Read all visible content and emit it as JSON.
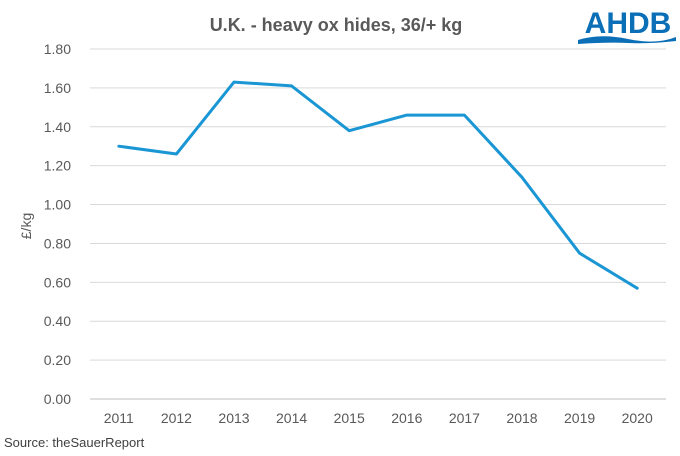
{
  "chart_data": {
    "type": "line",
    "title": "U.K. - heavy ox hides, 36/+ kg",
    "ylabel": "£/kg",
    "xlabel": "",
    "categories": [
      "2011",
      "2012",
      "2013",
      "2014",
      "2015",
      "2016",
      "2017",
      "2018",
      "2019",
      "2020"
    ],
    "series": [
      {
        "values": [
          1.3,
          1.26,
          1.63,
          1.61,
          1.38,
          1.46,
          1.46,
          1.14,
          0.75,
          0.57
        ]
      }
    ],
    "ylim": [
      0,
      1.8
    ],
    "yticks": [
      "0.00",
      "0.20",
      "0.40",
      "0.60",
      "0.80",
      "1.00",
      "1.20",
      "1.40",
      "1.60",
      "1.80"
    ],
    "grid": true,
    "legend": "none",
    "line_color": "#1a96d4",
    "grid_color": "#d9d9d9"
  },
  "source_text": "Source: theSauerReport",
  "logo": {
    "text": "AHDB",
    "color": "#0a6fb6"
  }
}
